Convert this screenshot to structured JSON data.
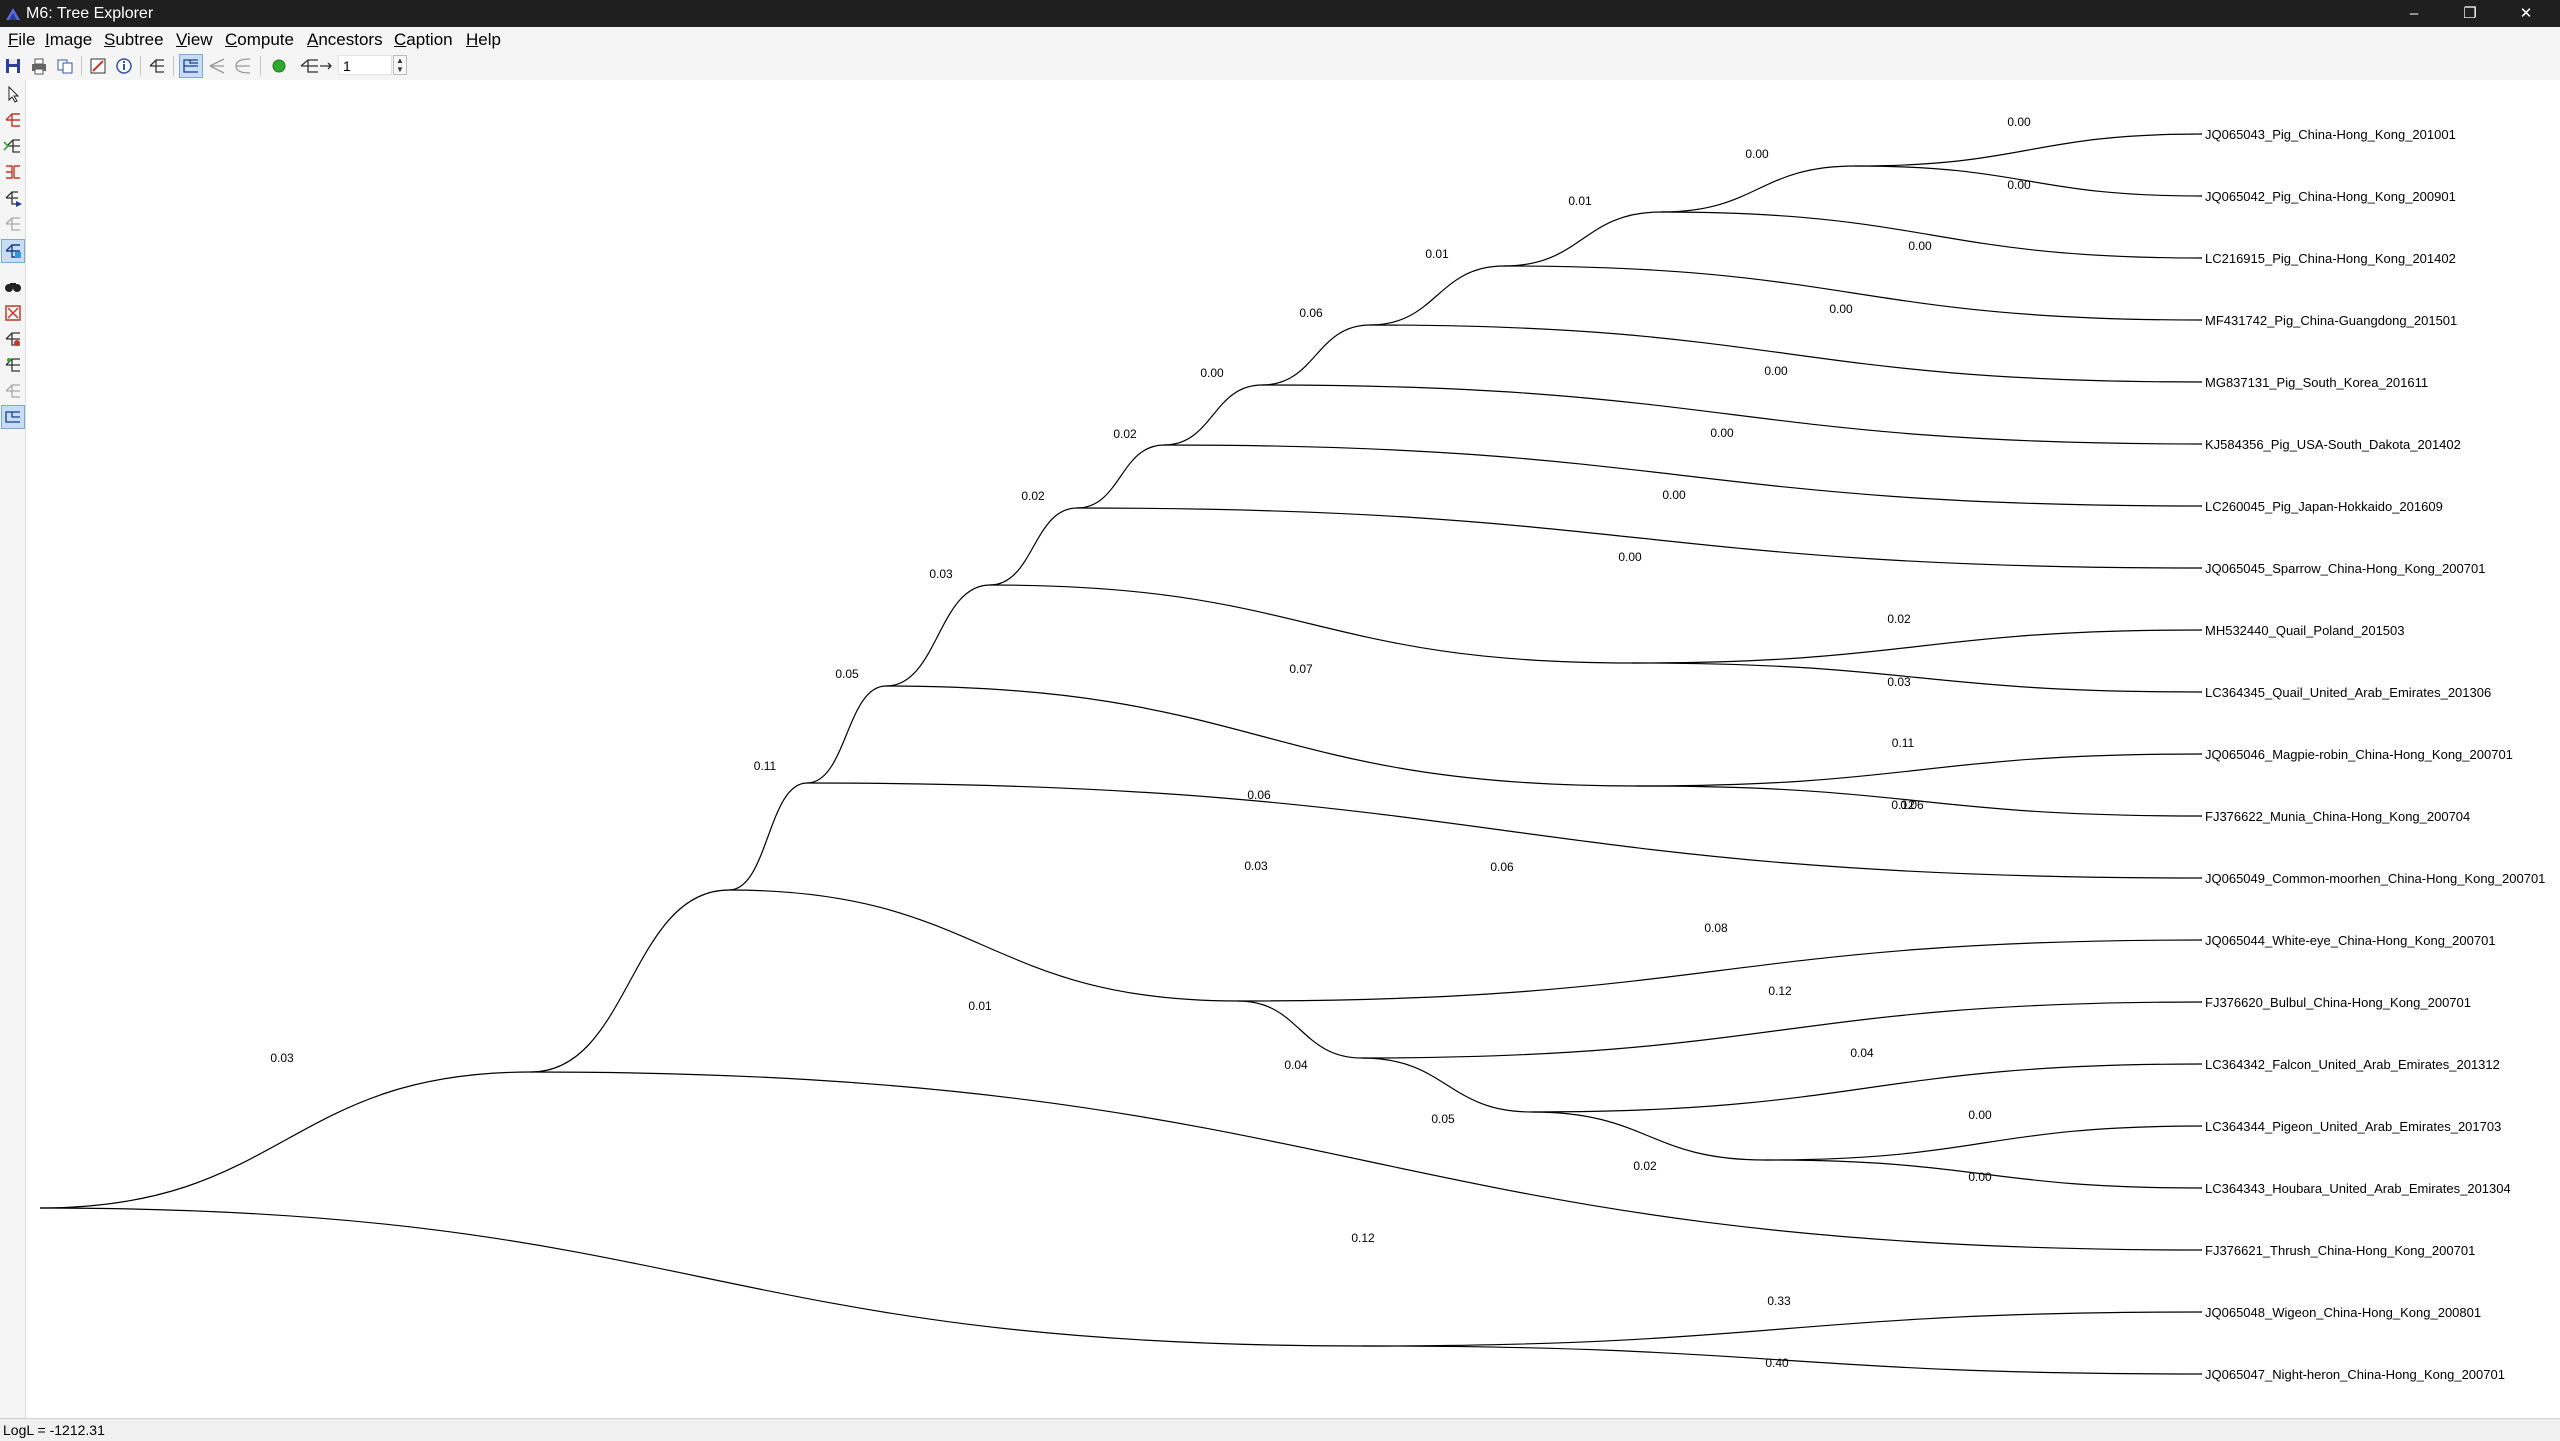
{
  "window": {
    "title": "M6: Tree Explorer",
    "controls": [
      "–",
      "❐",
      "✕"
    ]
  },
  "menubar": [
    {
      "u": "F",
      "rest": "ile"
    },
    {
      "u": "I",
      "rest": "mage"
    },
    {
      "u": "S",
      "rest": "ubtree"
    },
    {
      "u": "V",
      "rest": "iew"
    },
    {
      "u": "C",
      "rest": "ompute"
    },
    {
      "u": "A",
      "rest": "ncestors"
    },
    {
      "u": "C",
      "rest": "aption"
    },
    {
      "u": "H",
      "rest": "elp"
    }
  ],
  "toolbar": {
    "icons": [
      "save-icon",
      "print-icon",
      "copy-icon",
      "draw-style-icon",
      "information-icon",
      "tree-style-icon",
      "rectangular-tree-icon",
      "straight-tree-icon",
      "circle-tree-icon",
      "green-dot-icon",
      "tree-width-icon"
    ],
    "zoom_value": "1"
  },
  "left_tools": [
    "pointer-icon",
    "flip-subtree-icon",
    "swap-subtree-icon",
    "compress-subtree-icon",
    "root-on-branch-icon",
    "collapse-icon",
    "select-subtree-icon",
    "search-icon",
    "compress-all-icon",
    "subtree-format-icon",
    "branch-info-icon",
    "cluster-icon",
    "align-taxa-icon"
  ],
  "tree": {
    "taxa": [
      "JQ065043_Pig_China-Hong_Kong_201001",
      "JQ065042_Pig_China-Hong_Kong_200901",
      "LC216915_Pig_China-Hong_Kong_201402",
      "MF431742_Pig_China-Guangdong_201501",
      "MG837131_Pig_South_Korea_201611",
      "KJ584356_Pig_USA-South_Dakota_201402",
      "LC260045_Pig_Japan-Hokkaido_201609",
      "JQ065045_Sparrow_China-Hong_Kong_200701",
      "MH532440_Quail_Poland_201503",
      "LC364345_Quail_United_Arab_Emirates_201306",
      "JQ065046_Magpie-robin_China-Hong_Kong_200701",
      "FJ376622_Munia_China-Hong_Kong_200704",
      "JQ065049_Common-moorhen_China-Hong_Kong_200701",
      "JQ065044_White-eye_China-Hong_Kong_200701",
      "FJ376620_Bulbul_China-Hong_Kong_200701",
      "LC364342_Falcon_United_Arab_Emirates_201312",
      "LC364344_Pigeon_United_Arab_Emirates_201703",
      "LC364343_Houbara_United_Arab_Emirates_201304",
      "FJ376621_Thrush_China-Hong_Kong_200701",
      "JQ065048_Wigeon_China-Hong_Kong_200801",
      "JQ065047_Night-heron_China-Hong_Kong_200701"
    ],
    "branch_lengths": [
      "0.00",
      "0.00",
      "0.00",
      "0.00",
      "0.00",
      "0.00",
      "0.00",
      "0.00",
      "0.00",
      "0.01",
      "0.01",
      "0.06",
      "0.00",
      "0.02",
      "0.02",
      "0.03",
      "0.07",
      "0.02",
      "0.03",
      "0.05",
      "0.11",
      "0.12",
      "0.06",
      "0.06",
      "0.11",
      "0.03",
      "0.08",
      "0.01",
      "0.12",
      "0.04",
      "0.04",
      "0.05",
      "0.00",
      "0.02",
      "0.00",
      "0.06",
      "0.12",
      "0.33",
      "0.03",
      "0.40"
    ]
  },
  "status": {
    "log_likelihood": "LogL = -1212.31"
  }
}
